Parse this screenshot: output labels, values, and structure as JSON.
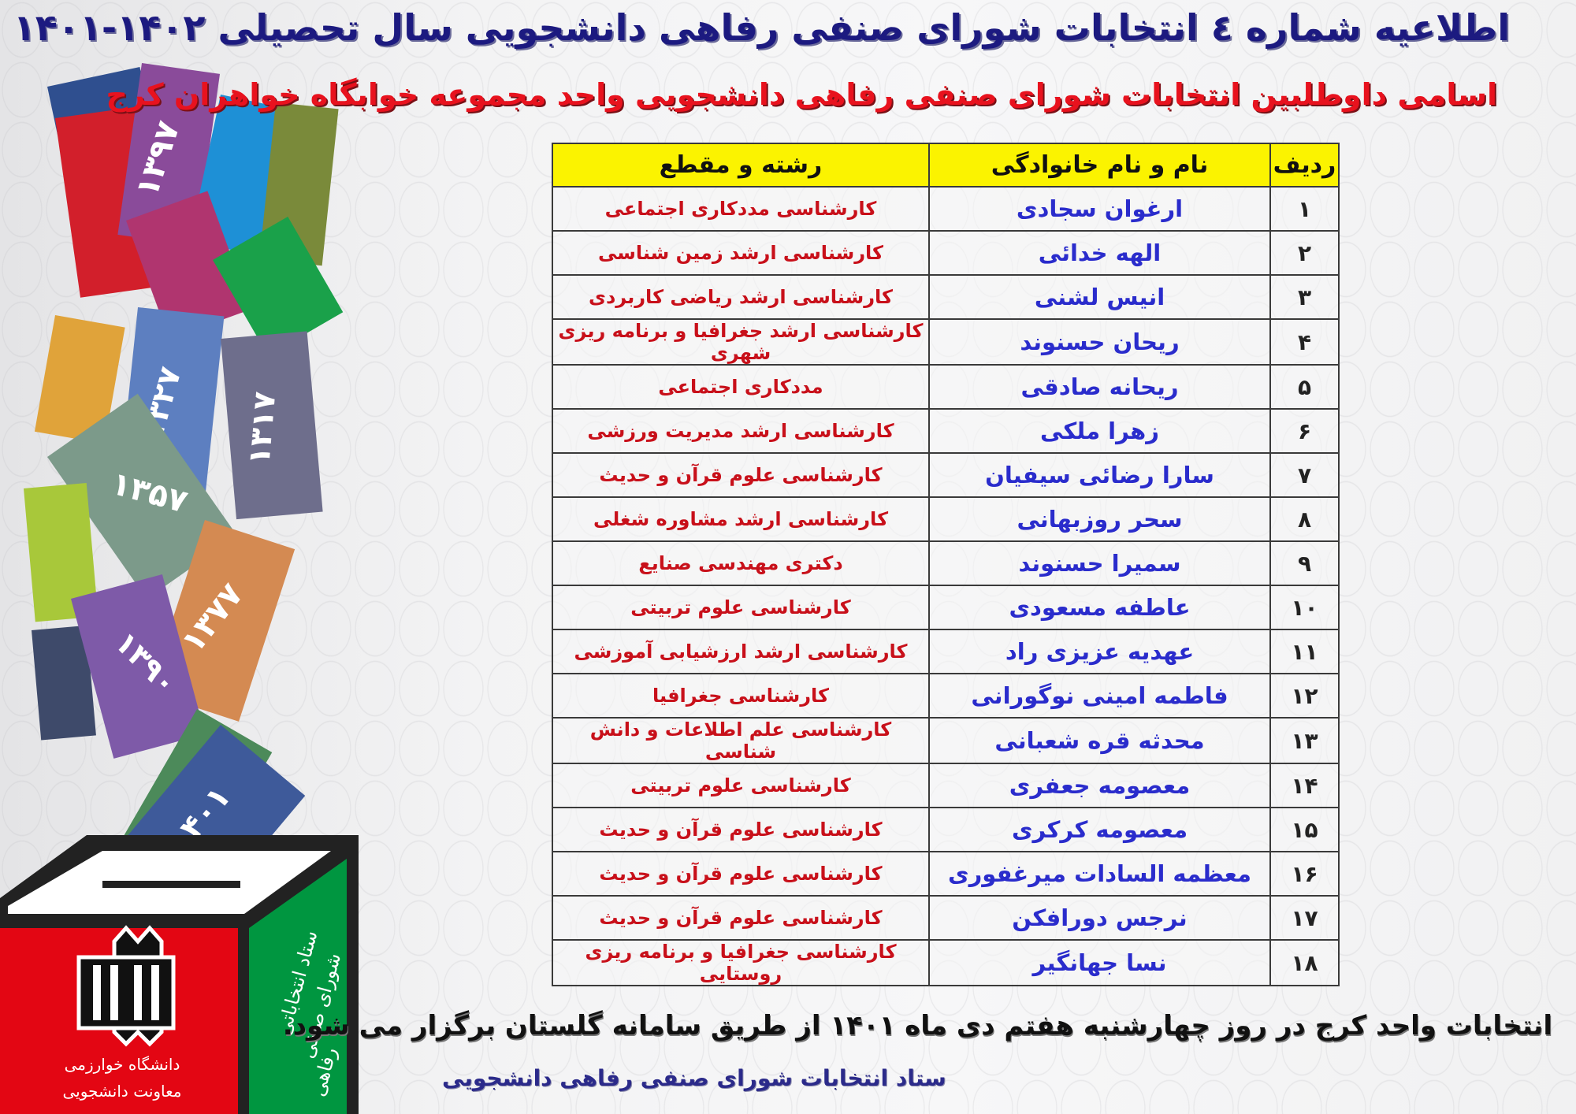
{
  "header": {
    "title": "اطلاعیه شماره ٤ انتخابات شورای صنفی رفاهی دانشجویی سال تحصیلی ۱۴۰۲-۱۴۰۱",
    "subtitle": "اسامی داوطلبین انتخابات شورای صنفی رفاهی دانشجویی واحد مجموعه خوابگاه خواهران کرج"
  },
  "table": {
    "columns": [
      "ردیف",
      "نام و نام خانوادگی",
      "رشته و مقطع"
    ],
    "rows": [
      {
        "idx": "۱",
        "name": "ارغوان سجادی",
        "field": "کارشناسی مددکاری اجتماعی"
      },
      {
        "idx": "۲",
        "name": "الهه خدائی",
        "field": "کارشناسی ارشد زمین شناسی"
      },
      {
        "idx": "۳",
        "name": "انیس لشنی",
        "field": "کارشناسی ارشد ریاضی کاربردی"
      },
      {
        "idx": "۴",
        "name": "ریحان حسنوند",
        "field": "کارشناسی ارشد جغرافیا و برنامه ریزی شهری"
      },
      {
        "idx": "۵",
        "name": "ریحانه صادقی",
        "field": "مددکاری اجتماعی"
      },
      {
        "idx": "۶",
        "name": "زهرا ملکی",
        "field": "کارشناسی ارشد مدیریت ورزشی"
      },
      {
        "idx": "۷",
        "name": "سارا رضائی سیفیان",
        "field": "کارشناسی علوم قرآن و حدیث"
      },
      {
        "idx": "۸",
        "name": "سحر روزبهانی",
        "field": "کارشناسی ارشد مشاوره شغلی"
      },
      {
        "idx": "۹",
        "name": "سمیرا حسنوند",
        "field": "دکتری مهندسی صنایع"
      },
      {
        "idx": "۱۰",
        "name": "عاطفه مسعودی",
        "field": "کارشناسی علوم تربیتی"
      },
      {
        "idx": "۱۱",
        "name": "عهدیه عزیزی راد",
        "field": "کارشناسی ارشد ارزشیابی آموزشی"
      },
      {
        "idx": "۱۲",
        "name": "فاطمه امینی نوگورانی",
        "field": "کارشناسی جغرافیا"
      },
      {
        "idx": "۱۳",
        "name": "محدثه قره شعبانی",
        "field": "کارشناسی علم اطلاعات و دانش شناسی"
      },
      {
        "idx": "۱۴",
        "name": "معصومه جعفری",
        "field": "کارشناسی علوم تربیتی"
      },
      {
        "idx": "۱۵",
        "name": "معصومه کرکری",
        "field": "کارشناسی علوم قرآن و حدیث"
      },
      {
        "idx": "۱۶",
        "name": "معظمه السادات میرغفوری",
        "field": "کارشناسی علوم قرآن و حدیث"
      },
      {
        "idx": "۱۷",
        "name": "نرجس دورافکن",
        "field": "کارشناسی علوم قرآن و حدیث"
      },
      {
        "idx": "۱۸",
        "name": "نسا جهانگیر",
        "field": "کارشناسی جغرافیا و برنامه ریزی روستایی"
      }
    ]
  },
  "footer": {
    "notice": "انتخابات واحد کرج در روز چهارشنبه هفتم دی ماه ۱۴۰۱ از طریق سامانه گلستان برگزار می شود.",
    "signature": "ستاد انتخابات شورای صنفی رفاهی دانشجویی"
  },
  "illustration": {
    "card_years": [
      "۱۳۹۷",
      "۱۳۲۷",
      "۱۳۱۷",
      "۱۳۵۷",
      "۱۳۷۷",
      "۱۳۹۰",
      "۱۴۰۱"
    ],
    "box_front_text": [
      "دانشگاه خوارزمی",
      "معاونت دانشجویی"
    ],
    "box_side_text": [
      "ستاد انتخاباتی",
      "شورای صنفی",
      "رفاهی"
    ],
    "colors": {
      "box_red": "#e30613",
      "box_green": "#009640",
      "header_yellow": "#fbf300",
      "title_blue": "#1c1a80",
      "subtitle_red": "#e8121e"
    }
  }
}
